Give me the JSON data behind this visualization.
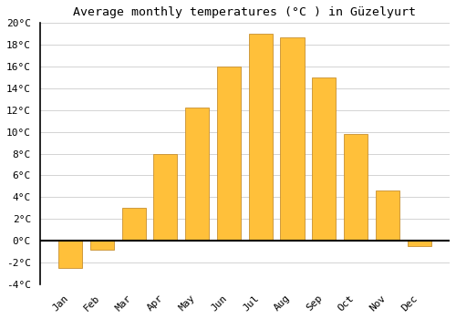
{
  "title": "Average monthly temperatures (°C ) in Güzelyurt",
  "months": [
    "Jan",
    "Feb",
    "Mar",
    "Apr",
    "May",
    "Jun",
    "Jul",
    "Aug",
    "Sep",
    "Oct",
    "Nov",
    "Dec"
  ],
  "values": [
    -2.5,
    -0.8,
    3.0,
    8.0,
    12.2,
    16.0,
    19.0,
    18.7,
    15.0,
    9.8,
    4.6,
    -0.5
  ],
  "bar_color": "#FFC03A",
  "bar_edge_color": "#C89030",
  "ylim": [
    -4,
    20
  ],
  "yticks": [
    -4,
    -2,
    0,
    2,
    4,
    6,
    8,
    10,
    12,
    14,
    16,
    18,
    20
  ],
  "background_color": "#ffffff",
  "grid_color": "#cccccc",
  "title_fontsize": 9.5,
  "tick_fontsize": 8,
  "font_family": "monospace"
}
